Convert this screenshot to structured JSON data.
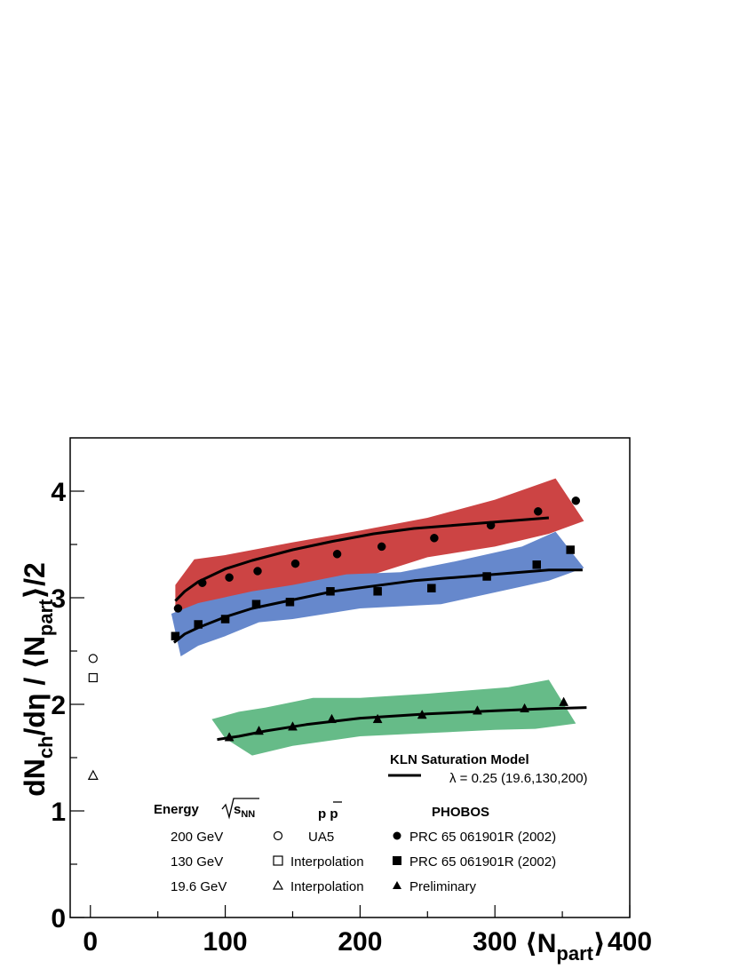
{
  "chart_data": {
    "type": "scatter",
    "xlim": [
      -15,
      400
    ],
    "ylim": [
      0,
      4.5
    ],
    "x_ticks": [
      0,
      100,
      200,
      300,
      400
    ],
    "y_ticks": [
      0,
      1,
      2,
      3,
      4
    ],
    "x_tick_labels": [
      "0",
      "100",
      "200",
      "300",
      "400"
    ],
    "y_tick_labels": [
      "0",
      "1",
      "2",
      "3",
      "4"
    ],
    "ylabel_parts": {
      "main": "dN",
      "sub1": "ch",
      "mid": "/dη / ⟨N",
      "sub2": "part",
      "end": "⟩/2"
    },
    "xlabel_parts": {
      "open": "⟨N",
      "sub": "part",
      "close": "⟩"
    },
    "grid": false,
    "colors": {
      "red_band": "#cc4444",
      "blue_band": "#6688cc",
      "green_band": "#66bb88"
    },
    "bands": [
      {
        "energy": "200 GeV",
        "color": "#cc4444",
        "upper": [
          [
            63,
            3.12
          ],
          [
            77,
            3.36
          ],
          [
            100,
            3.4
          ],
          [
            150,
            3.52
          ],
          [
            200,
            3.63
          ],
          [
            250,
            3.75
          ],
          [
            300,
            3.92
          ],
          [
            345,
            4.12
          ],
          [
            366,
            3.72
          ]
        ],
        "lower": [
          [
            366,
            3.72
          ],
          [
            340,
            3.6
          ],
          [
            300,
            3.48
          ],
          [
            250,
            3.38
          ],
          [
            200,
            3.18
          ],
          [
            150,
            3.02
          ],
          [
            100,
            2.92
          ],
          [
            77,
            2.66
          ],
          [
            63,
            2.85
          ]
        ]
      },
      {
        "energy": "130 GeV",
        "color": "#6688cc",
        "upper": [
          [
            60,
            2.85
          ],
          [
            80,
            2.95
          ],
          [
            120,
            3.06
          ],
          [
            150,
            3.12
          ],
          [
            190,
            3.22
          ],
          [
            230,
            3.24
          ],
          [
            270,
            3.34
          ],
          [
            320,
            3.48
          ],
          [
            345,
            3.62
          ],
          [
            366,
            3.28
          ]
        ],
        "lower": [
          [
            366,
            3.28
          ],
          [
            340,
            3.16
          ],
          [
            300,
            3.05
          ],
          [
            260,
            2.94
          ],
          [
            200,
            2.9
          ],
          [
            150,
            2.8
          ],
          [
            125,
            2.77
          ],
          [
            100,
            2.64
          ],
          [
            80,
            2.55
          ],
          [
            67,
            2.45
          ]
        ]
      },
      {
        "energy": "19.6 GeV",
        "color": "#66bb88",
        "upper": [
          [
            90,
            1.86
          ],
          [
            110,
            1.93
          ],
          [
            130,
            1.97
          ],
          [
            165,
            2.06
          ],
          [
            200,
            2.06
          ],
          [
            250,
            2.1
          ],
          [
            310,
            2.16
          ],
          [
            340,
            2.23
          ],
          [
            360,
            1.82
          ]
        ],
        "lower": [
          [
            360,
            1.82
          ],
          [
            330,
            1.77
          ],
          [
            300,
            1.76
          ],
          [
            250,
            1.73
          ],
          [
            200,
            1.7
          ],
          [
            150,
            1.61
          ],
          [
            120,
            1.52
          ],
          [
            100,
            1.68
          ]
        ]
      }
    ],
    "model_curves": [
      {
        "energy": "200 GeV",
        "x": [
          63,
          70,
          80,
          100,
          120,
          150,
          180,
          210,
          240,
          270,
          300,
          340
        ],
        "y": [
          2.97,
          3.06,
          3.15,
          3.27,
          3.35,
          3.45,
          3.53,
          3.6,
          3.65,
          3.68,
          3.71,
          3.75
        ]
      },
      {
        "energy": "130 GeV",
        "x": [
          62,
          70,
          80,
          100,
          120,
          150,
          180,
          210,
          240,
          270,
          300,
          340,
          365
        ],
        "y": [
          2.58,
          2.66,
          2.72,
          2.82,
          2.9,
          2.98,
          3.06,
          3.11,
          3.16,
          3.19,
          3.22,
          3.26,
          3.26
        ]
      },
      {
        "energy": "19.6 GeV",
        "x": [
          94,
          110,
          130,
          160,
          200,
          250,
          300,
          340,
          368
        ],
        "y": [
          1.67,
          1.7,
          1.75,
          1.81,
          1.87,
          1.91,
          1.94,
          1.96,
          1.97
        ]
      }
    ],
    "series": [
      {
        "name": "PRC 65 061901R (2002)",
        "energy": "200 GeV",
        "marker": "filled-circle",
        "x": [
          65,
          83,
          103,
          124,
          152,
          183,
          216,
          255,
          297,
          332,
          360
        ],
        "y": [
          2.9,
          3.14,
          3.19,
          3.25,
          3.32,
          3.41,
          3.48,
          3.56,
          3.68,
          3.81,
          3.91
        ]
      },
      {
        "name": "PRC 65 061901R (2002)",
        "energy": "130 GeV",
        "marker": "filled-square",
        "x": [
          63,
          80,
          100,
          123,
          148,
          178,
          213,
          253,
          294,
          331,
          356
        ],
        "y": [
          2.64,
          2.75,
          2.8,
          2.94,
          2.96,
          3.06,
          3.06,
          3.09,
          3.2,
          3.31,
          3.45
        ]
      },
      {
        "name": "Preliminary",
        "energy": "19.6 GeV",
        "marker": "filled-triangle",
        "x": [
          103,
          125,
          150,
          179,
          213,
          246,
          287,
          322,
          351
        ],
        "y": [
          1.69,
          1.75,
          1.79,
          1.86,
          1.86,
          1.9,
          1.94,
          1.96,
          2.02
        ]
      },
      {
        "name": "UA5",
        "energy": "200 GeV",
        "marker": "open-circle",
        "x": [
          2
        ],
        "y": [
          2.43
        ]
      },
      {
        "name": "Interpolation",
        "energy": "130 GeV",
        "marker": "open-square",
        "x": [
          2
        ],
        "y": [
          2.25
        ]
      },
      {
        "name": "Interpolation",
        "energy": "19.6 GeV",
        "marker": "open-triangle",
        "x": [
          2
        ],
        "y": [
          1.33
        ]
      }
    ],
    "legend": {
      "model_title": "KLN Saturation Model",
      "model_entry": "λ = 0.25  (19.6,130,200)",
      "header_energy": "Energy",
      "header_sqrt_s": "s",
      "header_sqrt_sub": "NN",
      "header_ppbar": "p p",
      "header_phobos": "PHOBOS",
      "rows": [
        {
          "energy": "200 GeV",
          "ppbar": "UA5",
          "phobos": "PRC 65 061901R (2002)"
        },
        {
          "energy": "130 GeV",
          "ppbar": "Interpolation",
          "phobos": "PRC 65 061901R (2002)"
        },
        {
          "energy": "19.6 GeV",
          "ppbar": "Interpolation",
          "phobos": "Preliminary"
        }
      ]
    }
  }
}
